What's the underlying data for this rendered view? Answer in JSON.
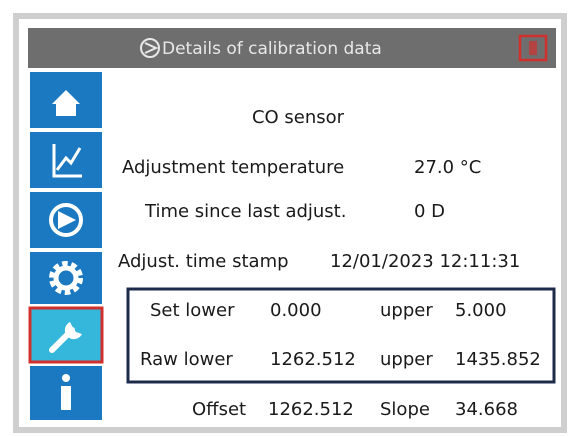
{
  "header": {
    "title": "Details of calibration data"
  },
  "sensor": "CO sensor",
  "info": [
    {
      "label": "Adjustment temperature",
      "value": "27.0 °C"
    },
    {
      "label": "Time since last adjust.",
      "value": "0 D"
    },
    {
      "label": "Adjust. time stamp",
      "value": "12/01/2023 12:11:31"
    }
  ],
  "calibration": [
    {
      "label": "Set lower",
      "lower": "0.000",
      "upper_label": "upper",
      "upper": "5.000"
    },
    {
      "label": "Raw lower",
      "lower": "1262.512",
      "upper_label": "upper",
      "upper": "1435.852"
    }
  ],
  "footer": {
    "offset_label": "Offset",
    "offset": "1262.512",
    "slope_label": "Slope",
    "slope": "34.668"
  }
}
